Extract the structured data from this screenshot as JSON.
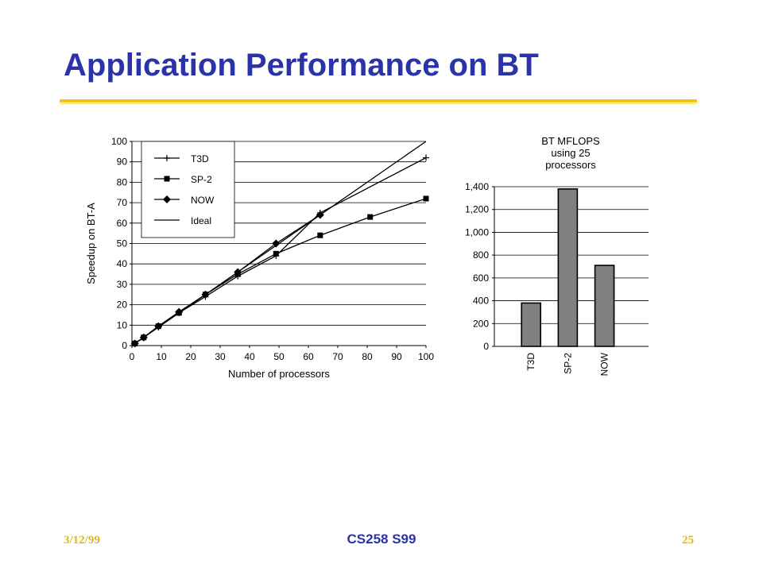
{
  "slide": {
    "title": "Application Performance on BT",
    "footer_date": "3/12/99",
    "footer_course": "CS258 S99",
    "footer_page": "25",
    "colors": {
      "title": "#2a33a8",
      "rule": "#f0c419",
      "footer_accent": "#e2b712",
      "bar_fill": "#808080"
    }
  },
  "chart_data": [
    {
      "type": "line",
      "xlabel": "Number of processors",
      "ylabel": "Speedup on BT-A",
      "xlim": [
        0,
        100
      ],
      "ylim": [
        0,
        100
      ],
      "xticks": [
        "0",
        "10",
        "20",
        "30",
        "40",
        "50",
        "60",
        "70",
        "80",
        "90",
        "100"
      ],
      "yticks": [
        "0",
        "10",
        "20",
        "30",
        "40",
        "50",
        "60",
        "70",
        "80",
        "90",
        "100"
      ],
      "grid": "horizontal",
      "legend": "top-left",
      "series": [
        {
          "name": "T3D",
          "marker": "plus",
          "x": [
            1,
            4,
            9,
            16,
            25,
            36,
            49,
            64,
            100
          ],
          "y": [
            1,
            4,
            9,
            16,
            24,
            34,
            44,
            65,
            92
          ]
        },
        {
          "name": "SP-2",
          "marker": "square",
          "x": [
            1,
            4,
            9,
            16,
            25,
            36,
            49,
            64,
            81,
            100
          ],
          "y": [
            1,
            4,
            9.5,
            16,
            25,
            35,
            45,
            54,
            63,
            72
          ]
        },
        {
          "name": "NOW",
          "marker": "diamond",
          "x": [
            1,
            4,
            9,
            16,
            25,
            36,
            49,
            64
          ],
          "y": [
            1,
            4,
            9.5,
            16.5,
            25,
            36,
            50,
            64
          ]
        },
        {
          "name": "Ideal",
          "marker": "none",
          "x": [
            0,
            100
          ],
          "y": [
            0,
            100
          ]
        }
      ]
    },
    {
      "type": "bar",
      "title_lines": [
        "BT MFLOPS",
        "using 25",
        "processors"
      ],
      "categories": [
        "T3D",
        "SP-2",
        "NOW"
      ],
      "values": [
        380,
        1380,
        710
      ],
      "ylim": [
        0,
        1400
      ],
      "yticks": [
        "0",
        "200",
        "400",
        "600",
        "800",
        "1,000",
        "1,200",
        "1,400"
      ],
      "grid": "horizontal"
    }
  ]
}
